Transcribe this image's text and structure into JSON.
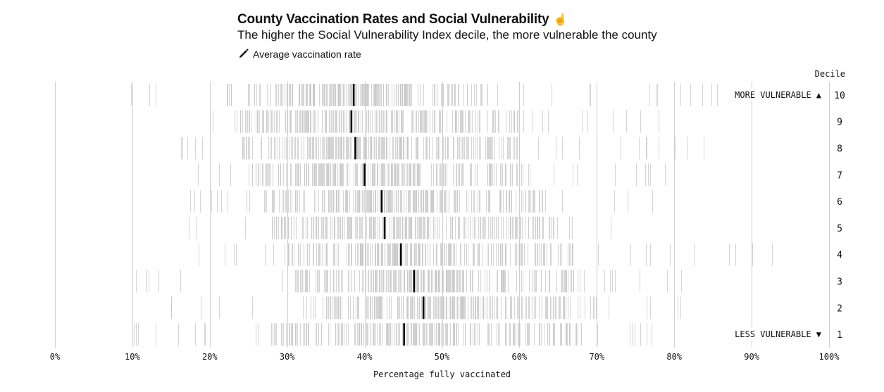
{
  "title": "County Vaccination Rates and Social Vulnerability",
  "subtitle": "The higher the Social Vulnerability Index decile, the more vulnerable the county",
  "legend": {
    "average_label": "Average vaccination rate",
    "icon": "pencil-icon"
  },
  "colors": {
    "county_line": "#c8c8c8",
    "average_line": "#000000",
    "grid": "#cfcfcf",
    "text": "#111111"
  },
  "chart_data": {
    "type": "strip",
    "title": "County Vaccination Rates and Social Vulnerability",
    "subtitle": "The higher the Social Vulnerability Index decile, the more vulnerable the county",
    "xlabel": "Percentage fully vaccinated",
    "ylabel": "Decile",
    "xlim": [
      0,
      100
    ],
    "x_ticks": [
      "0%",
      "10%",
      "20%",
      "30%",
      "40%",
      "50%",
      "60%",
      "70%",
      "80%",
      "90%",
      "100%"
    ],
    "grid": true,
    "annotations": {
      "top": "MORE VULNERABLE ▲",
      "bottom": "LESS VULNERABLE ▼"
    },
    "deciles": [
      {
        "decile": "10",
        "average": 38.6,
        "min": 9.8,
        "max": 85.5,
        "core": [
          22,
          56
        ]
      },
      {
        "decile": "9",
        "average": 38.3,
        "min": 20.0,
        "max": 78.0,
        "core": [
          23,
          60
        ]
      },
      {
        "decile": "8",
        "average": 38.8,
        "min": 16.3,
        "max": 83.8,
        "core": [
          24,
          60
        ]
      },
      {
        "decile": "7",
        "average": 40.0,
        "min": 18.5,
        "max": 78.8,
        "core": [
          25,
          62
        ]
      },
      {
        "decile": "6",
        "average": 42.2,
        "min": 17.5,
        "max": 77.2,
        "core": [
          27,
          64
        ]
      },
      {
        "decile": "5",
        "average": 42.6,
        "min": 17.3,
        "max": 71.8,
        "core": [
          28,
          65
        ]
      },
      {
        "decile": "4",
        "average": 44.7,
        "min": 18.6,
        "max": 92.6,
        "core": [
          30,
          67
        ]
      },
      {
        "decile": "3",
        "average": 46.4,
        "min": 10.5,
        "max": 80.9,
        "core": [
          31,
          68
        ]
      },
      {
        "decile": "2",
        "average": 47.6,
        "min": 15.0,
        "max": 80.8,
        "core": [
          32,
          70
        ]
      },
      {
        "decile": "1",
        "average": 45.1,
        "min": 10.2,
        "max": 77.1,
        "core": [
          28,
          68
        ]
      }
    ]
  }
}
